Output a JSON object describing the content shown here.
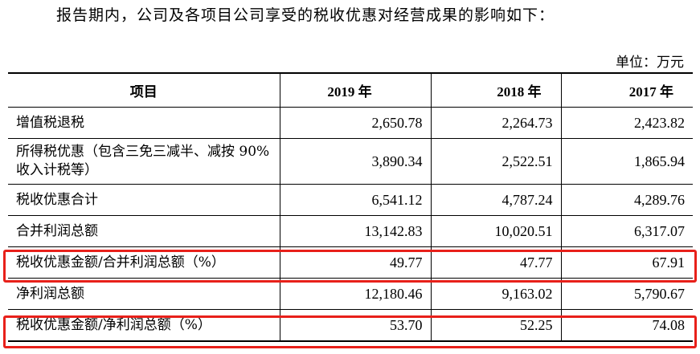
{
  "intro_text": "报告期内，公司及各项目公司享受的税收优惠对经营成果的影响如下：",
  "unit_label": "单位：万元",
  "table": {
    "headers": [
      "项目",
      "2019 年",
      "2018 年",
      "2017 年"
    ],
    "rows": [
      {
        "label": "增值税退税",
        "v2019": "2,650.78",
        "v2018": "2,264.73",
        "v2017": "2,423.82"
      },
      {
        "label": "所得税优惠（包含三免三减半、减按 90%收入计税等）",
        "v2019": "3,890.34",
        "v2018": "2,522.51",
        "v2017": "1,865.94"
      },
      {
        "label": "税收优惠合计",
        "v2019": "6,541.12",
        "v2018": "4,787.24",
        "v2017": "4,289.76"
      },
      {
        "label": "合并利润总额",
        "v2019": "13,142.83",
        "v2018": "10,020.51",
        "v2017": "6,317.07"
      },
      {
        "label": "税收优惠金额/合并利润总额（%）",
        "v2019": "49.77",
        "v2018": "47.77",
        "v2017": "67.91"
      },
      {
        "label": "净利润总额",
        "v2019": "12,180.46",
        "v2018": "9,163.02",
        "v2017": "5,790.67"
      },
      {
        "label": "税收优惠金额/净利润总额（%）",
        "v2019": "53.70",
        "v2018": "52.25",
        "v2017": "74.08"
      }
    ]
  },
  "highlight_color": "#e8201a"
}
